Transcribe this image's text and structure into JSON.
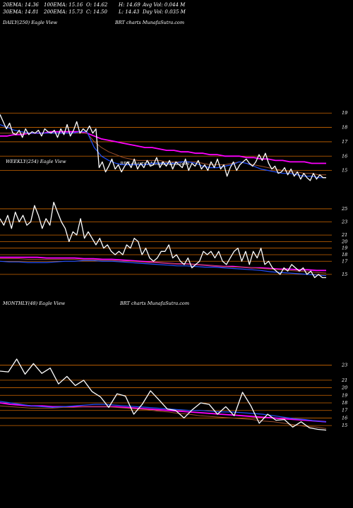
{
  "header": {
    "line1": [
      "20EMA: 14.36",
      "100EMA: 15.16",
      "O: 14.62",
      "H: 14.69",
      "Avg Vol: 0.044 M"
    ],
    "line2": [
      "30EMA: 14.81",
      "200EMA: 15.73",
      "C: 14.50",
      "L: 14.43",
      "Day Vol: 0.035 M"
    ]
  },
  "panels": {
    "daily": {
      "label": "DAILY(250) Eagle  View",
      "site": "BRT charts MunafaSutra.com",
      "ticks": [
        "19",
        "18",
        "17",
        "16",
        "15"
      ]
    },
    "weekly": {
      "label": "WEEKLY(254) Eagle  View",
      "site": "BRT charts MunafaSutra.com",
      "ticks": [
        "25",
        "23",
        "21",
        "20",
        "19",
        "18",
        "17",
        "15"
      ]
    },
    "monthly": {
      "label": "MONTHLY(48) Eagle  View",
      "site": "BRT charts MunafaSutra.com",
      "ticks": [
        "23",
        "21",
        "20",
        "19",
        "18",
        "17",
        "16",
        "15"
      ]
    }
  },
  "colors": {
    "price": "#ffffff",
    "ema_fast": "#2050ff",
    "ema_slow": "#ff00ff",
    "ema_mid": "#a0522d",
    "grid": "#cc6600"
  },
  "chart_data": [
    {
      "type": "line",
      "panel": "daily",
      "ylim": [
        14,
        19.6
      ],
      "grid": [
        19,
        18,
        17,
        16,
        15
      ],
      "series": [
        {
          "role": "price",
          "values": [
            18.9,
            18.4,
            17.9,
            18.3,
            17.6,
            17.5,
            17.8,
            17.3,
            17.9,
            17.5,
            17.7,
            17.6,
            17.8,
            17.4,
            17.9,
            17.7,
            17.6,
            17.8,
            17.3,
            17.9,
            17.5,
            18.2,
            17.4,
            17.8,
            18.4,
            17.6,
            17.9,
            17.7,
            18.1,
            17.6,
            17.9,
            15.2,
            15.6,
            14.9,
            15.3,
            15.8,
            15.1,
            15.4,
            14.9,
            15.3,
            15.6,
            15.2,
            15.8,
            15.1,
            15.5,
            15.2,
            15.7,
            15.3,
            15.4,
            15.9,
            15.2,
            15.6,
            15.3,
            15.7,
            15.1,
            15.6,
            15.4,
            15.2,
            15.8,
            15.0,
            15.5,
            15.3,
            15.7,
            15.1,
            15.4,
            15.0,
            15.6,
            15.2,
            15.8,
            15.1,
            15.4,
            14.6,
            15.2,
            15.6,
            15.0,
            15.4,
            15.6,
            15.8,
            15.5,
            15.3,
            15.6,
            16.1,
            15.7,
            16.2,
            15.5,
            15.1,
            15.3,
            14.8,
            14.9,
            15.2,
            14.7,
            15.1,
            14.6,
            14.9,
            14.4,
            14.8,
            14.5,
            14.3,
            14.8,
            14.4,
            14.7,
            14.5,
            14.5
          ]
        },
        {
          "role": "ema_fast",
          "values": [
            18.2,
            18.0,
            17.8,
            17.7,
            17.6,
            17.6,
            17.6,
            17.6,
            17.6,
            17.6,
            17.6,
            17.7,
            17.7,
            16.6,
            16.0,
            15.7,
            15.5,
            15.4,
            15.4,
            15.4,
            15.4,
            15.5,
            15.5,
            15.5,
            15.5,
            15.6,
            15.6,
            15.5,
            15.3,
            15.2,
            15.2,
            15.3,
            15.4,
            15.6,
            15.5,
            15.3,
            15.1,
            15.0,
            14.9,
            14.8,
            14.8,
            14.7,
            14.6,
            14.6,
            14.5,
            14.5
          ]
        },
        {
          "role": "ema_mid",
          "values": [
            17.6,
            17.6,
            17.6,
            17.6,
            17.6,
            17.6,
            17.6,
            17.6,
            17.6,
            17.6,
            17.6,
            17.6,
            17.6,
            17.0,
            16.6,
            16.3,
            16.1,
            15.9,
            15.8,
            15.7,
            15.7,
            15.7,
            15.7,
            15.6,
            15.6,
            15.6,
            15.6,
            15.6,
            15.5,
            15.4,
            15.4,
            15.4,
            15.5,
            15.6,
            15.5,
            15.4,
            15.3,
            15.2,
            15.1,
            15.0,
            14.9,
            14.9,
            14.8,
            14.8,
            14.7,
            14.7
          ]
        },
        {
          "role": "ema_slow",
          "values": [
            17.4,
            17.4,
            17.5,
            17.5,
            17.6,
            17.6,
            17.6,
            17.7,
            17.7,
            17.7,
            17.7,
            17.7,
            17.6,
            17.4,
            17.2,
            17.1,
            17.0,
            16.9,
            16.8,
            16.7,
            16.6,
            16.6,
            16.5,
            16.4,
            16.4,
            16.3,
            16.3,
            16.2,
            16.2,
            16.1,
            16.1,
            16.0,
            16.0,
            16.0,
            15.9,
            15.9,
            15.8,
            15.8,
            15.7,
            15.7,
            15.6,
            15.6,
            15.6,
            15.5,
            15.5,
            15.5
          ]
        }
      ]
    },
    {
      "type": "line",
      "panel": "weekly",
      "ylim": [
        13.8,
        26.5
      ],
      "grid": [
        25,
        23,
        21,
        20,
        19,
        18,
        17,
        15
      ],
      "series": [
        {
          "role": "price",
          "values": [
            23.5,
            22.5,
            24.0,
            22.0,
            24.5,
            23.0,
            24.0,
            22.5,
            23.0,
            25.5,
            24.0,
            22.0,
            23.5,
            22.5,
            26.0,
            24.5,
            23.0,
            22.0,
            20.0,
            21.5,
            21.0,
            23.5,
            20.5,
            21.5,
            20.5,
            19.5,
            20.5,
            19.0,
            19.5,
            18.5,
            18.0,
            18.5,
            18.0,
            19.5,
            19.0,
            20.5,
            20.0,
            18.0,
            19.0,
            17.5,
            17.0,
            17.5,
            18.5,
            18.5,
            19.5,
            17.5,
            18.0,
            17.0,
            16.5,
            17.5,
            16.0,
            16.5,
            17.0,
            18.5,
            18.0,
            18.5,
            17.5,
            18.5,
            17.0,
            16.5,
            17.5,
            18.5,
            19.0,
            17.0,
            18.5,
            16.5,
            18.5,
            17.5,
            19.0,
            16.5,
            17.0,
            16.0,
            15.5,
            15.0,
            16.0,
            15.5,
            16.5,
            16.0,
            15.5,
            16.0,
            15.0,
            15.5,
            14.5,
            15.0,
            14.5,
            14.5
          ]
        },
        {
          "role": "ema_fast",
          "values": [
            17.0,
            16.9,
            16.9,
            16.8,
            16.8,
            16.8,
            16.9,
            17.0,
            17.0,
            17.1,
            17.1,
            17.0,
            17.0,
            16.9,
            16.8,
            16.7,
            16.6,
            16.5,
            16.4,
            16.3,
            16.3,
            16.2,
            16.1,
            16.1,
            16.0,
            15.9,
            15.8,
            15.7,
            15.6,
            15.4,
            15.3,
            15.2,
            15.1,
            15.0,
            14.9,
            14.8
          ]
        },
        {
          "role": "ema_mid",
          "values": [
            17.4,
            17.4,
            17.4,
            17.3,
            17.3,
            17.3,
            17.3,
            17.3,
            17.3,
            17.2,
            17.2,
            17.1,
            17.1,
            17.0,
            17.0,
            16.9,
            16.8,
            16.8,
            16.7,
            16.6,
            16.6,
            16.5,
            16.4,
            16.3,
            16.2,
            16.1,
            16.1,
            16.0,
            15.9,
            15.8,
            15.7,
            15.6,
            15.5,
            15.4,
            15.3,
            15.2
          ]
        },
        {
          "role": "ema_slow",
          "values": [
            17.6,
            17.6,
            17.6,
            17.6,
            17.6,
            17.5,
            17.5,
            17.5,
            17.5,
            17.4,
            17.4,
            17.3,
            17.3,
            17.2,
            17.1,
            17.0,
            16.9,
            16.8,
            16.7,
            16.6,
            16.6,
            16.5,
            16.4,
            16.3,
            16.2,
            16.2,
            16.1,
            16.0,
            16.0,
            15.9,
            15.8,
            15.8,
            15.7,
            15.7,
            15.6,
            15.6
          ]
        }
      ]
    },
    {
      "type": "line",
      "panel": "monthly",
      "ylim": [
        13.8,
        25
      ],
      "grid": [
        23,
        21,
        20,
        19,
        18,
        17,
        16,
        15
      ],
      "series": [
        {
          "role": "price",
          "values": [
            22.2,
            22.1,
            23.8,
            21.8,
            23.2,
            21.9,
            22.6,
            20.5,
            21.5,
            20.3,
            21.0,
            19.5,
            18.8,
            17.4,
            19.2,
            18.9,
            16.5,
            17.8,
            19.6,
            18.4,
            17.2,
            17.0,
            16.0,
            17.1,
            18.0,
            17.8,
            16.5,
            17.5,
            16.3,
            19.4,
            17.6,
            15.3,
            16.5,
            15.7,
            15.8,
            14.8,
            15.5,
            14.7,
            14.5,
            14.4
          ]
        },
        {
          "role": "ema_fast",
          "values": [
            18.2,
            18.0,
            17.8,
            17.6,
            17.5,
            17.4,
            17.5,
            17.6,
            17.7,
            17.8,
            17.8,
            17.7,
            17.6,
            17.5,
            17.4,
            17.3,
            17.2,
            17.1,
            17.0,
            17.0,
            16.9,
            16.8,
            16.8,
            16.7,
            16.6,
            16.5,
            16.3,
            16.1,
            15.9,
            15.8,
            15.6,
            15.5
          ]
        },
        {
          "role": "ema_mid",
          "values": [
            17.6,
            17.5,
            17.4,
            17.3,
            17.3,
            17.3,
            17.4,
            17.4,
            17.5,
            17.5,
            17.5,
            17.4,
            17.3,
            17.2,
            17.1,
            16.9,
            16.8,
            16.6,
            16.5,
            16.3,
            16.2,
            16.1,
            16.0,
            15.9,
            15.8,
            15.6,
            15.5,
            15.3,
            15.1,
            14.9,
            14.8,
            14.6
          ]
        },
        {
          "role": "ema_slow",
          "values": [
            18.0,
            17.8,
            17.7,
            17.6,
            17.6,
            17.5,
            17.5,
            17.5,
            17.5,
            17.5,
            17.5,
            17.5,
            17.4,
            17.3,
            17.2,
            17.1,
            17.0,
            16.9,
            16.8,
            16.7,
            16.6,
            16.5,
            16.4,
            16.3,
            16.2,
            16.1,
            16.0,
            15.9,
            15.8,
            15.7,
            15.6,
            15.5
          ]
        }
      ]
    }
  ]
}
